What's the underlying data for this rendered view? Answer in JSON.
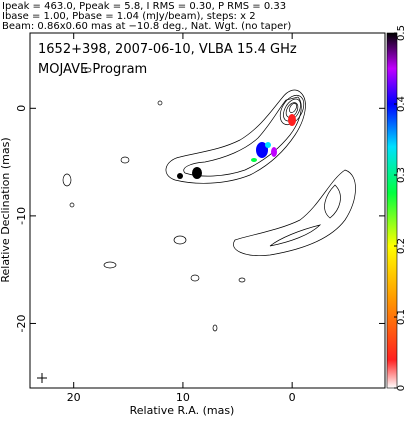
{
  "chart_data": {
    "type": "contour",
    "header": [
      "Ipeak = 463.0, Ppeak = 5.8, I RMS = 0.30, P RMS = 0.33",
      "Ibase = 1.00, Pbase = 1.04 (mJy/beam), steps: x 2",
      "Beam: 0.86x0.60 mas at −10.8 deg., Nat. Wgt. (no taper)"
    ],
    "title": "1652+398, 2007-06-10, VLBA 15.4 GHz",
    "subtitle": "MOJAVE Program",
    "xlabel": "Relative R.A. (mas)",
    "ylabel": "Relative Declination (mas)",
    "xlim": [
      24,
      -8.5
    ],
    "xticks": [
      20,
      10,
      0
    ],
    "ylim": [
      -26,
      7
    ],
    "yticks": [
      0,
      -10,
      -20
    ],
    "colorbar": {
      "lim": [
        0,
        0.5
      ],
      "ticks": [
        0,
        0.1,
        0.2,
        0.3,
        0.4,
        0.5
      ]
    }
  }
}
